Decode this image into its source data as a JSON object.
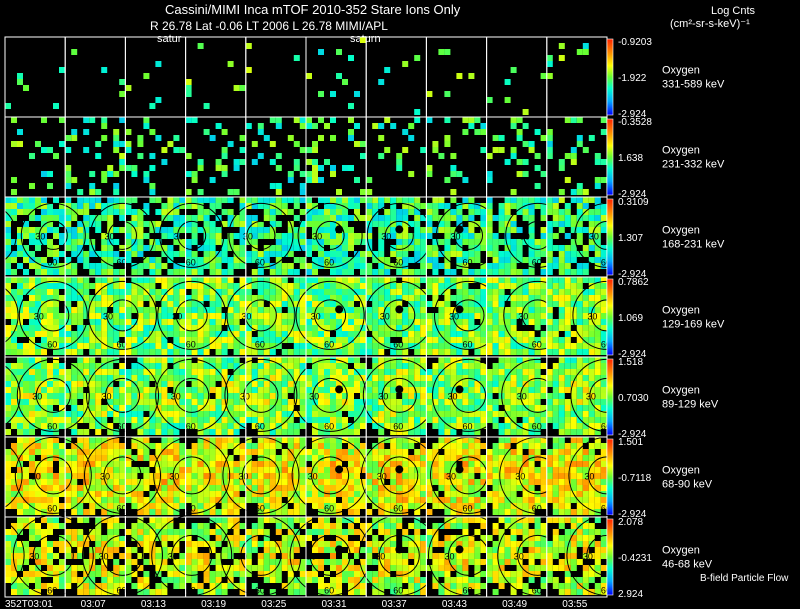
{
  "header": {
    "title": "Cassini/MIMI Inca mTOF  2010-352   Stare   Ions Only",
    "subtitle_line": "R        26.78 Lat -0.06 LT 2006 L       26.78  MIMI/APL",
    "saturn_label_1": "satur",
    "saturn_label_2": "saturn",
    "units_line1": "Log Cnts",
    "units_line2": "(cm²-sr-s-keV)⁻¹",
    "legend_note": "B-field Particle Flow"
  },
  "chart_data": {
    "type": "heatmap",
    "title": "Cassini/MIMI Inca mTOF  2010-352   Stare   Ions Only",
    "time_labels": [
      "352T03:01",
      "03:07",
      "03:13",
      "03:19",
      "03:25",
      "03:31",
      "03:37",
      "03:43",
      "03:49",
      "03:55"
    ],
    "contour_labels": [
      "30",
      "60"
    ],
    "rows": [
      {
        "species": "Oxygen",
        "energy": "331-589 keV",
        "cb_max": "-0.9203",
        "cb_mid": "-1.922",
        "cb_min": "-2.924",
        "density": 0.04,
        "level": 0.45
      },
      {
        "species": "Oxygen",
        "energy": "231-332 keV",
        "cb_max": "-0.3528",
        "cb_mid": "1.638",
        "cb_min": "-2.924",
        "density": 0.22,
        "level": 0.42
      },
      {
        "species": "Oxygen",
        "energy": "168-231 keV",
        "cb_max": "0.3109",
        "cb_mid": "1.307",
        "cb_min": "-2.924",
        "density": 0.78,
        "level": 0.42
      },
      {
        "species": "Oxygen",
        "energy": "129-169 keV",
        "cb_max": "0.7862",
        "cb_mid": "1.069",
        "cb_min": "-2.924",
        "density": 0.93,
        "level": 0.5
      },
      {
        "species": "Oxygen",
        "energy": "89-129 keV",
        "cb_max": "1.518",
        "cb_mid": "0.7030",
        "cb_min": "-2.924",
        "density": 0.97,
        "level": 0.58
      },
      {
        "species": "Oxygen",
        "energy": "68-90 keV",
        "cb_max": "1.501",
        "cb_mid": "-0.7118",
        "cb_min": "-2.924",
        "density": 0.95,
        "level": 0.7
      },
      {
        "species": "Oxygen",
        "energy": "46-68 keV",
        "cb_max": "2.078",
        "cb_mid": "-0.4231",
        "cb_min": "2.924",
        "density": 0.8,
        "level": 0.66
      }
    ]
  }
}
